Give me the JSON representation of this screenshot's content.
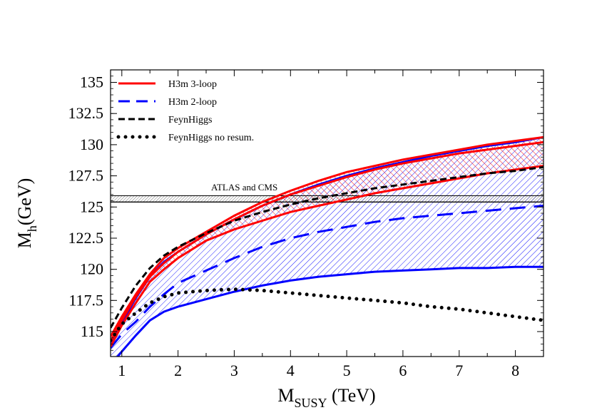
{
  "chart_data": {
    "type": "line",
    "xlabel": {
      "main": "M",
      "sub": "SUSY",
      "unit": " (TeV)"
    },
    "ylabel": {
      "main": "M",
      "sub": "h",
      "unit": "(GeV)"
    },
    "xlim": [
      0.8,
      8.5
    ],
    "ylim": [
      113.0,
      136.0
    ],
    "xticks": [
      1,
      2,
      3,
      4,
      5,
      6,
      7,
      8
    ],
    "yticks": [
      115,
      117.5,
      120,
      122.5,
      125,
      127.5,
      130,
      132.5,
      135
    ],
    "ytick_labels": [
      "115",
      "117.5",
      "120",
      "122.5",
      "125",
      "127.5",
      "130",
      "132.5",
      "135"
    ],
    "band_label": "ATLAS and CMS",
    "measurement_band": [
      125.4,
      125.9
    ],
    "series": [
      {
        "name": "H3m 3-loop",
        "color": "#ff0000",
        "style": "solid",
        "x": [
          0.8,
          1.0,
          1.25,
          1.5,
          1.75,
          2.0,
          2.5,
          3.0,
          3.5,
          4.0,
          4.5,
          5.0,
          5.5,
          6.0,
          6.5,
          7.0,
          7.5,
          8.0,
          8.5
        ],
        "upper": [
          114.6,
          116.2,
          118.0,
          119.6,
          120.9,
          121.7,
          123.0,
          124.3,
          125.4,
          126.3,
          127.1,
          127.8,
          128.3,
          128.8,
          129.2,
          129.6,
          130.0,
          130.3,
          130.6
        ],
        "central": [
          114.2,
          115.9,
          117.8,
          119.4,
          120.5,
          121.4,
          122.8,
          124.0,
          125.1,
          126.0,
          126.7,
          127.4,
          128.0,
          128.5,
          128.9,
          129.3,
          129.6,
          129.9,
          130.2
        ],
        "lower": [
          113.8,
          115.5,
          117.3,
          119.0,
          120.0,
          120.9,
          122.3,
          123.2,
          123.9,
          124.6,
          125.1,
          125.6,
          126.1,
          126.5,
          126.9,
          127.3,
          127.7,
          128.0,
          128.3
        ]
      },
      {
        "name": "H3m 2-loop",
        "color": "#0000ff",
        "style": "dashed",
        "x": [
          0.8,
          1.0,
          1.25,
          1.5,
          1.75,
          2.0,
          2.5,
          3.0,
          3.5,
          4.0,
          4.5,
          5.0,
          5.5,
          6.0,
          6.5,
          7.0,
          7.5,
          8.0,
          8.5
        ],
        "upper": [
          114.0,
          115.7,
          117.7,
          119.4,
          120.6,
          121.4,
          122.8,
          124.0,
          125.1,
          126.0,
          126.8,
          127.5,
          128.1,
          128.6,
          129.1,
          129.5,
          129.9,
          130.2,
          130.6
        ],
        "central": [
          113.7,
          114.8,
          115.8,
          117.0,
          118.0,
          118.9,
          119.9,
          120.9,
          121.8,
          122.5,
          123.0,
          123.4,
          123.8,
          124.1,
          124.3,
          124.5,
          124.7,
          124.9,
          125.1
        ],
        "lower": [
          112.3,
          113.4,
          114.7,
          115.9,
          116.6,
          117.0,
          117.6,
          118.2,
          118.7,
          119.1,
          119.4,
          119.6,
          119.8,
          119.9,
          120.0,
          120.1,
          120.1,
          120.2,
          120.2
        ]
      },
      {
        "name": "FeynHiggs",
        "color": "#000000",
        "style": "dashed",
        "x": [
          0.8,
          1.0,
          1.25,
          1.5,
          1.75,
          2.0,
          2.5,
          3.0,
          3.5,
          4.0,
          4.5,
          5.0,
          5.5,
          6.0,
          6.5,
          7.0,
          7.5,
          8.0,
          8.5
        ],
        "y": [
          115.3,
          116.9,
          118.7,
          120.1,
          121.1,
          121.8,
          122.9,
          123.9,
          124.6,
          125.2,
          125.7,
          126.1,
          126.5,
          126.8,
          127.1,
          127.4,
          127.7,
          127.9,
          128.2
        ]
      },
      {
        "name": "FeynHiggs no resum.",
        "color": "#000000",
        "style": "dotted",
        "x": [
          0.8,
          1.0,
          1.25,
          1.5,
          1.75,
          2.0,
          2.5,
          3.0,
          3.5,
          4.0,
          4.5,
          5.0,
          5.5,
          6.0,
          6.5,
          7.0,
          7.5,
          8.0,
          8.5
        ],
        "y": [
          114.3,
          115.6,
          116.5,
          117.3,
          117.8,
          118.1,
          118.3,
          118.4,
          118.3,
          118.1,
          117.9,
          117.7,
          117.5,
          117.3,
          117.0,
          116.8,
          116.5,
          116.2,
          115.9
        ]
      }
    ]
  }
}
